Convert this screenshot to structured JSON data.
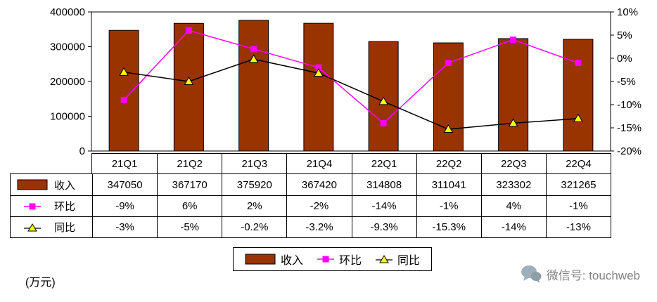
{
  "chart_data": {
    "type": "combo",
    "categories": [
      "21Q1",
      "21Q2",
      "21Q3",
      "21Q4",
      "22Q1",
      "22Q2",
      "22Q3",
      "22Q4"
    ],
    "series": [
      {
        "name": "收入",
        "type": "bar",
        "axis": "left",
        "color": "#993300",
        "values": [
          347050,
          367170,
          375920,
          367420,
          314808,
          311041,
          323302,
          321265
        ]
      },
      {
        "name": "环比",
        "type": "line",
        "axis": "right",
        "color": "#FF00FF",
        "marker": "square",
        "values": [
          -9,
          6,
          2,
          -2,
          -14,
          -1,
          4,
          -1
        ]
      },
      {
        "name": "同比",
        "type": "line",
        "axis": "right",
        "color": "#000000",
        "marker": "triangle",
        "marker_color": "#FFFF00",
        "values": [
          -3,
          -5,
          -0.2,
          -3.2,
          -9.3,
          -15.3,
          -14,
          -13
        ]
      }
    ],
    "left_axis": {
      "min": 0,
      "max": 400000,
      "tick_values": [
        400000,
        300000,
        200000,
        100000,
        0
      ],
      "tick_labels": [
        "400000",
        "300000",
        "200000",
        "100000",
        "0"
      ]
    },
    "right_axis": {
      "min": -20,
      "max": 10,
      "tick_values": [
        10,
        5,
        0,
        -5,
        -10,
        -15,
        -20
      ],
      "tick_labels": [
        "10%",
        "5%",
        "0%",
        "-5%",
        "-10%",
        "-15%",
        "-20%"
      ]
    },
    "grid": false,
    "legend_position": "bottom"
  },
  "table": {
    "header": [
      "21Q1",
      "21Q2",
      "21Q3",
      "21Q4",
      "22Q1",
      "22Q2",
      "22Q3",
      "22Q4"
    ],
    "rows": [
      {
        "label": "收入",
        "marker": "bar",
        "values": [
          "347050",
          "367170",
          "375920",
          "367420",
          "314808",
          "311041",
          "323302",
          "321265"
        ]
      },
      {
        "label": "环比",
        "marker": "square",
        "values": [
          "-9%",
          "6%",
          "2%",
          "-2%",
          "-14%",
          "-1%",
          "4%",
          "-1%"
        ]
      },
      {
        "label": "同比",
        "marker": "triangle",
        "values": [
          "-3%",
          "-5%",
          "-0.2%",
          "-3.2%",
          "-9.3%",
          "-15.3%",
          "-14%",
          "-13%"
        ]
      }
    ]
  },
  "legend": {
    "items": [
      {
        "label": "收入",
        "marker": "bar"
      },
      {
        "label": "环比",
        "marker": "square"
      },
      {
        "label": "同比",
        "marker": "triangle"
      }
    ]
  },
  "footer": {
    "unit_label": "(万元)",
    "watermark_text": "微信号: touchweb"
  }
}
